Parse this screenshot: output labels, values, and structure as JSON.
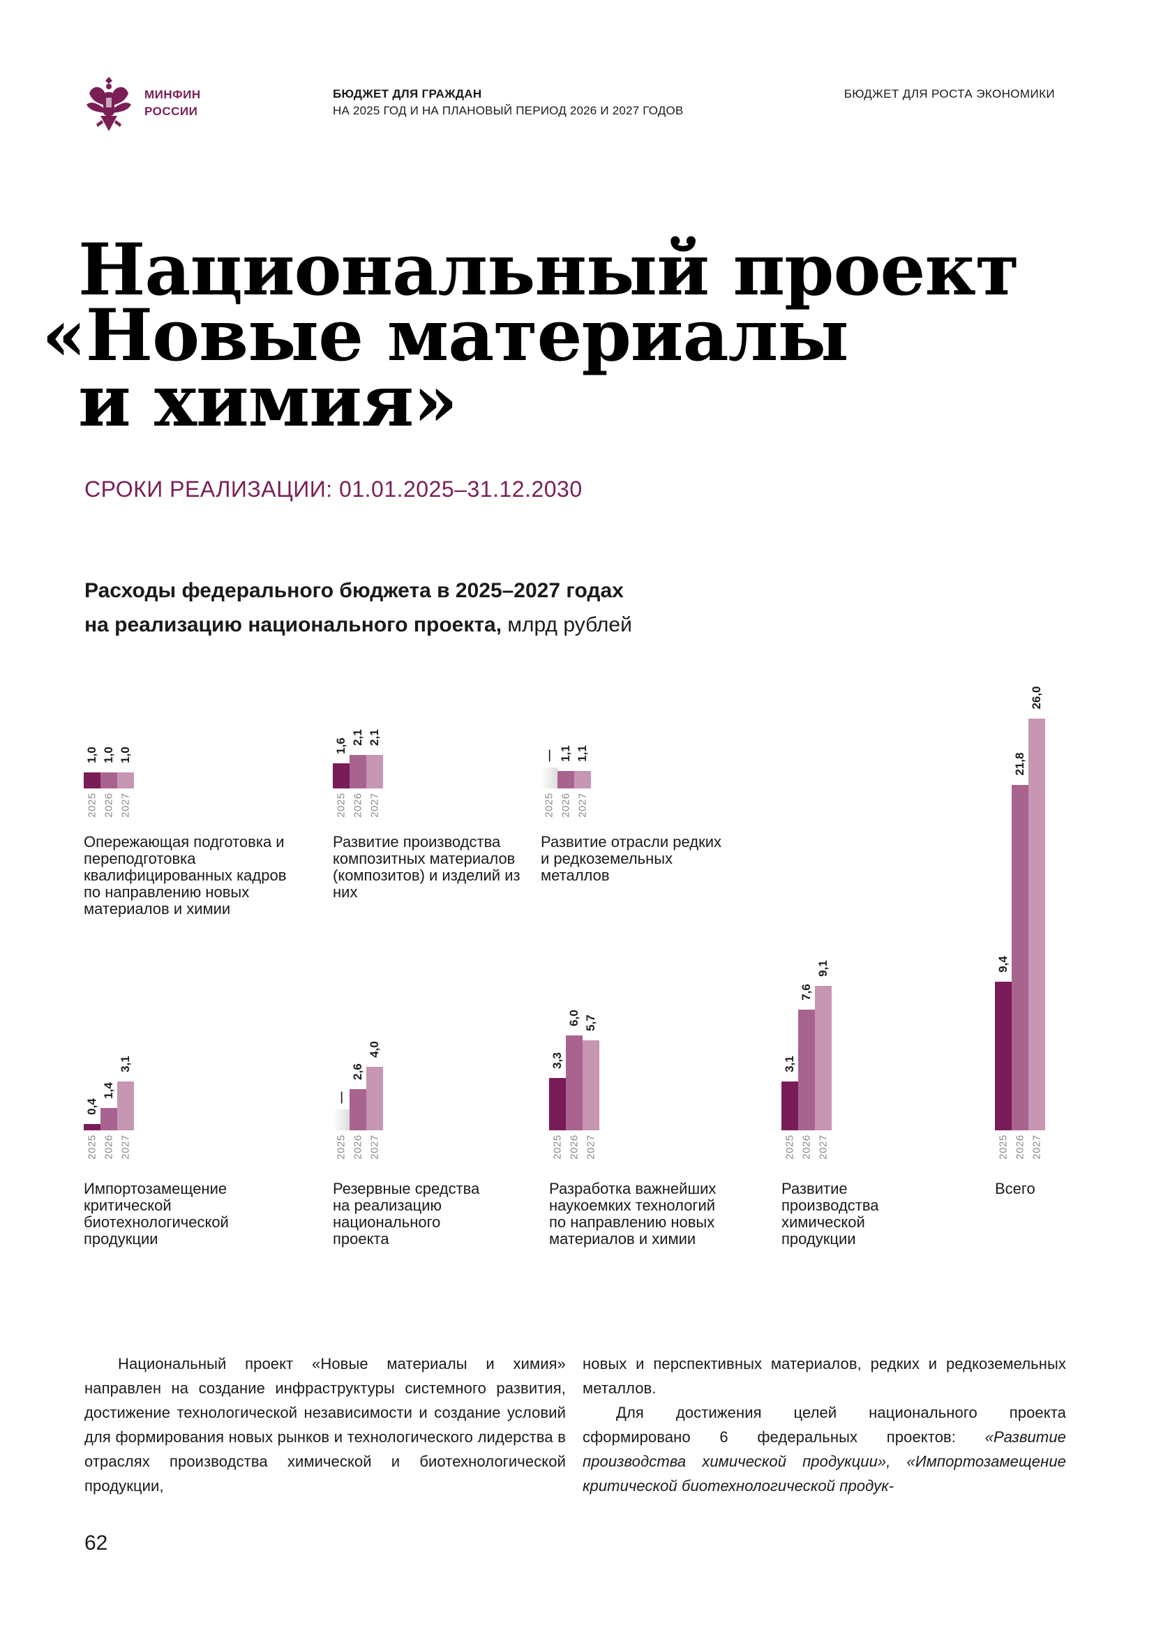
{
  "header": {
    "org_line1": "МИНФИН",
    "org_line2": "РОССИИ",
    "title": "БЮДЖЕТ ДЛЯ ГРАЖДАН",
    "subtitle": "НА 2025 ГОД И НА ПЛАНОВЫЙ ПЕРИОД 2026 И 2027 ГОДОВ",
    "right": "БЮДЖЕТ ДЛЯ РОСТА ЭКОНОМИКИ"
  },
  "title": {
    "line1": "Национальный проект",
    "line2": "«Новые материалы",
    "line3": "и химия»"
  },
  "period": "СРОКИ РЕАЛИЗАЦИИ: 01.01.2025–31.12.2030",
  "chart_heading": {
    "bold_line1": "Расходы федерального бюджета в 2025–2027 годах",
    "bold_line2": "на реализацию национального проекта,",
    "unit": " млрд рублей"
  },
  "chart_data": {
    "type": "bar",
    "categories": [
      "2025",
      "2026",
      "2027"
    ],
    "colors": {
      "2025": "#7a1c57",
      "2026": "#a8648e",
      "2027": "#c696b3"
    },
    "groups": [
      {
        "label": "Опережающая подготовка и переподготовка квалифицированных кадров по направлению новых материалов и химии",
        "values": [
          1.0,
          1.0,
          1.0
        ],
        "value_labels": [
          "1,0",
          "1,0",
          "1,0"
        ]
      },
      {
        "label": "Развитие производства композитных материалов (композитов) и изделий из них",
        "values": [
          1.6,
          2.1,
          2.1
        ],
        "value_labels": [
          "1,6",
          "2,1",
          "2,1"
        ]
      },
      {
        "label": "Развитие отрасли редких и редкоземельных металлов",
        "values": [
          null,
          1.1,
          1.1
        ],
        "value_labels": [
          "—",
          "1,1",
          "1,1"
        ]
      },
      {
        "label": "Импортозамещение критической биотехнологической продукции",
        "values": [
          0.4,
          1.4,
          3.1
        ],
        "value_labels": [
          "0,4",
          "1,4",
          "3,1"
        ]
      },
      {
        "label": "Резервные средства на реализацию национального проекта",
        "values": [
          null,
          2.6,
          4.0
        ],
        "value_labels": [
          "—",
          "2,6",
          "4,0"
        ]
      },
      {
        "label": "Разработка важнейших наукоемких технологий по направлению новых материалов и химии",
        "values": [
          3.3,
          6.0,
          5.7
        ],
        "value_labels": [
          "3,3",
          "6,0",
          "5,7"
        ]
      },
      {
        "label": "Развитие производства химической продукции",
        "values": [
          3.1,
          7.6,
          9.1
        ],
        "value_labels": [
          "3,1",
          "7,6",
          "9,1"
        ]
      },
      {
        "label": "Всего",
        "values": [
          9.4,
          21.8,
          26.0
        ],
        "value_labels": [
          "9,4",
          "21,8",
          "26,0"
        ]
      }
    ]
  },
  "body": {
    "col1": "Национальный проект «Новые материалы и химия» направлен на создание инфраструктуры системного развития, достижение технологической независимости и создание условий для формирования новых рынков и технологического лидерства в отраслях производства химической и биотехнологической продукции,",
    "col2_p1": "новых и перспективных материалов, редких и редкоземельных металлов.",
    "col2_p2_start": "Для достижения целей национального проекта сформировано 6 федеральных проектов: ",
    "col2_p2_italic": "«Развитие производства химической продукции», «Импортозамещение критической биотехнологической продук-"
  },
  "page_number": "62"
}
